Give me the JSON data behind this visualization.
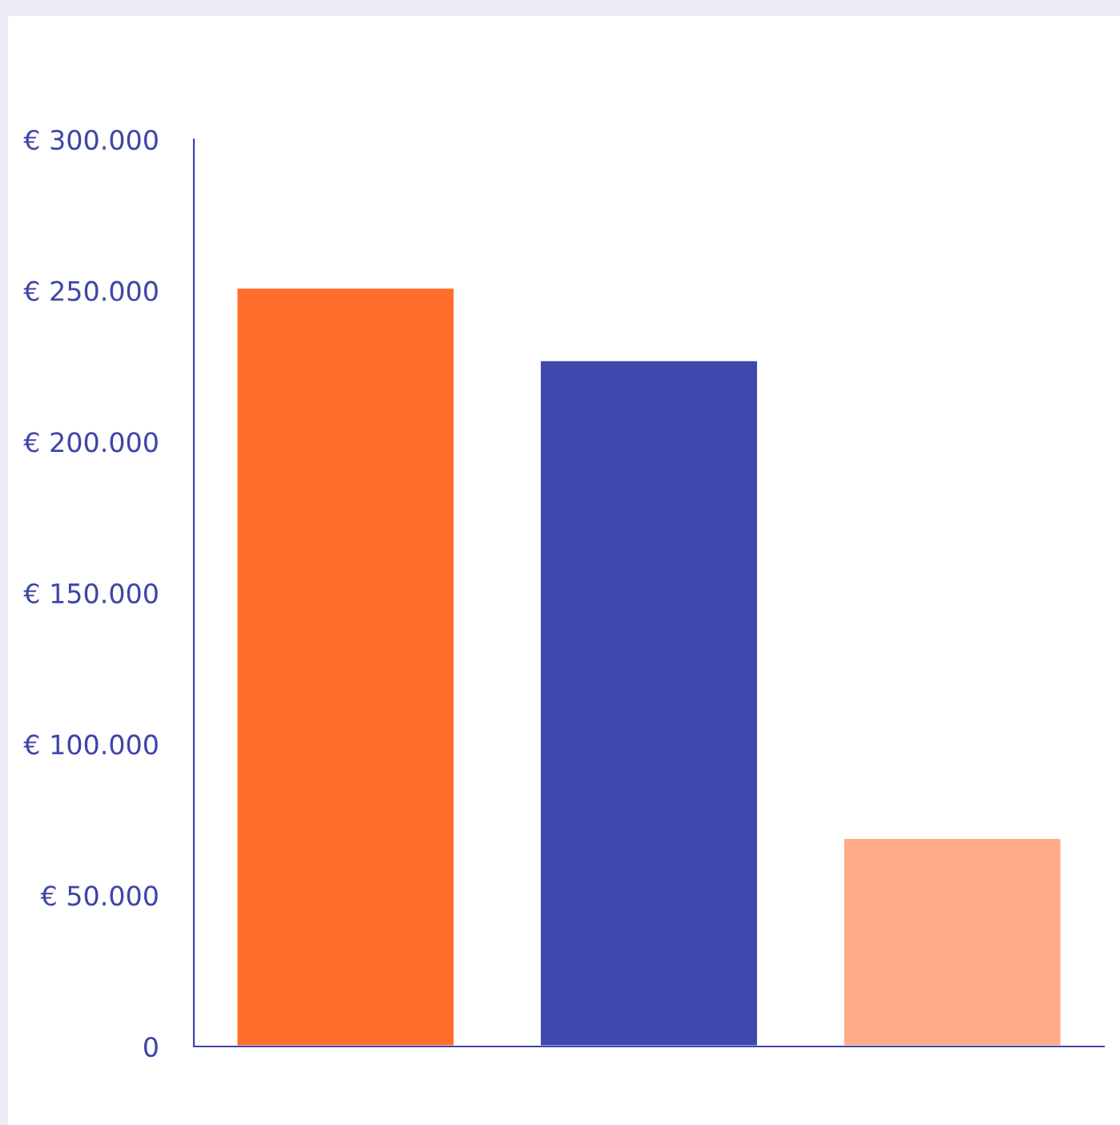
{
  "chart_data": {
    "type": "bar",
    "categories": [
      null,
      null,
      null
    ],
    "values": [
      251000,
      227000,
      69000
    ],
    "colors": [
      "#ff6d2b",
      "#3f47ad",
      "#ffab88"
    ],
    "ylim": [
      0,
      300000
    ],
    "yticks": [
      {
        "value": 0,
        "label": "0"
      },
      {
        "value": 50000,
        "label": "€ 50.000"
      },
      {
        "value": 100000,
        "label": "€ 100.000"
      },
      {
        "value": 150000,
        "label": "€ 150.000"
      },
      {
        "value": 200000,
        "label": "€ 200.000"
      },
      {
        "value": 250000,
        "label": "€ 250.000"
      },
      {
        "value": 300000,
        "label": "€ 300.000"
      }
    ],
    "grid": false
  }
}
